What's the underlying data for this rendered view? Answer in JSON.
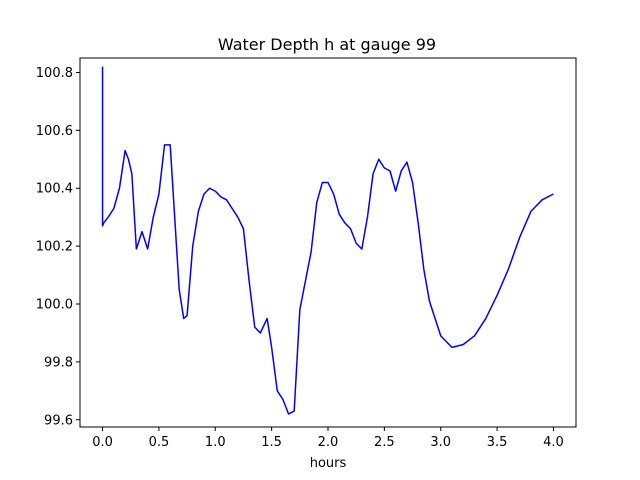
{
  "chart_data": {
    "type": "line",
    "title": "Water Depth h at gauge 99",
    "xlabel": "hours",
    "ylabel": "",
    "xlim": [
      -0.2,
      4.2
    ],
    "ylim": [
      99.575,
      100.85
    ],
    "xticks": [
      0.0,
      0.5,
      1.0,
      1.5,
      2.0,
      2.5,
      3.0,
      3.5,
      4.0
    ],
    "xtick_labels": [
      "0.0",
      "0.5",
      "1.0",
      "1.5",
      "2.0",
      "2.5",
      "3.0",
      "3.5",
      "4.0"
    ],
    "yticks": [
      99.6,
      99.8,
      100.0,
      100.2,
      100.4,
      100.6,
      100.8
    ],
    "ytick_labels": [
      "99.6",
      "99.8",
      "100.0",
      "100.2",
      "100.4",
      "100.6",
      "100.8"
    ],
    "grid": false,
    "series": [
      {
        "color": "#0000ff",
        "x": [
          0.0,
          0.0,
          0.01,
          0.05,
          0.1,
          0.15,
          0.2,
          0.23,
          0.26,
          0.3,
          0.35,
          0.4,
          0.45,
          0.5,
          0.55,
          0.6,
          0.64,
          0.68,
          0.72,
          0.75,
          0.8,
          0.85,
          0.9,
          0.95,
          1.0,
          1.05,
          1.1,
          1.15,
          1.2,
          1.25,
          1.3,
          1.35,
          1.4,
          1.46,
          1.5,
          1.55,
          1.6,
          1.65,
          1.7,
          1.75,
          1.8,
          1.85,
          1.9,
          1.95,
          2.0,
          2.05,
          2.1,
          2.15,
          2.2,
          2.25,
          2.3,
          2.35,
          2.4,
          2.45,
          2.5,
          2.55,
          2.6,
          2.65,
          2.7,
          2.75,
          2.8,
          2.85,
          2.9,
          2.95,
          3.0,
          3.1,
          3.2,
          3.3,
          3.4,
          3.5,
          3.6,
          3.7,
          3.8,
          3.9,
          4.0
        ],
        "y": [
          100.82,
          100.27,
          100.28,
          100.3,
          100.33,
          100.4,
          100.53,
          100.5,
          100.45,
          100.19,
          100.25,
          100.19,
          100.3,
          100.38,
          100.55,
          100.55,
          100.3,
          100.05,
          99.95,
          99.96,
          100.2,
          100.32,
          100.38,
          100.4,
          100.39,
          100.37,
          100.36,
          100.33,
          100.3,
          100.26,
          100.08,
          99.92,
          99.9,
          99.95,
          99.85,
          99.7,
          99.67,
          99.62,
          99.63,
          99.98,
          100.08,
          100.18,
          100.35,
          100.42,
          100.42,
          100.38,
          100.31,
          100.28,
          100.26,
          100.21,
          100.19,
          100.3,
          100.45,
          100.5,
          100.47,
          100.46,
          100.39,
          100.46,
          100.49,
          100.42,
          100.28,
          100.12,
          100.01,
          99.95,
          99.89,
          99.85,
          99.86,
          99.89,
          99.95,
          100.03,
          100.12,
          100.23,
          100.32,
          100.36,
          100.38
        ]
      }
    ]
  }
}
